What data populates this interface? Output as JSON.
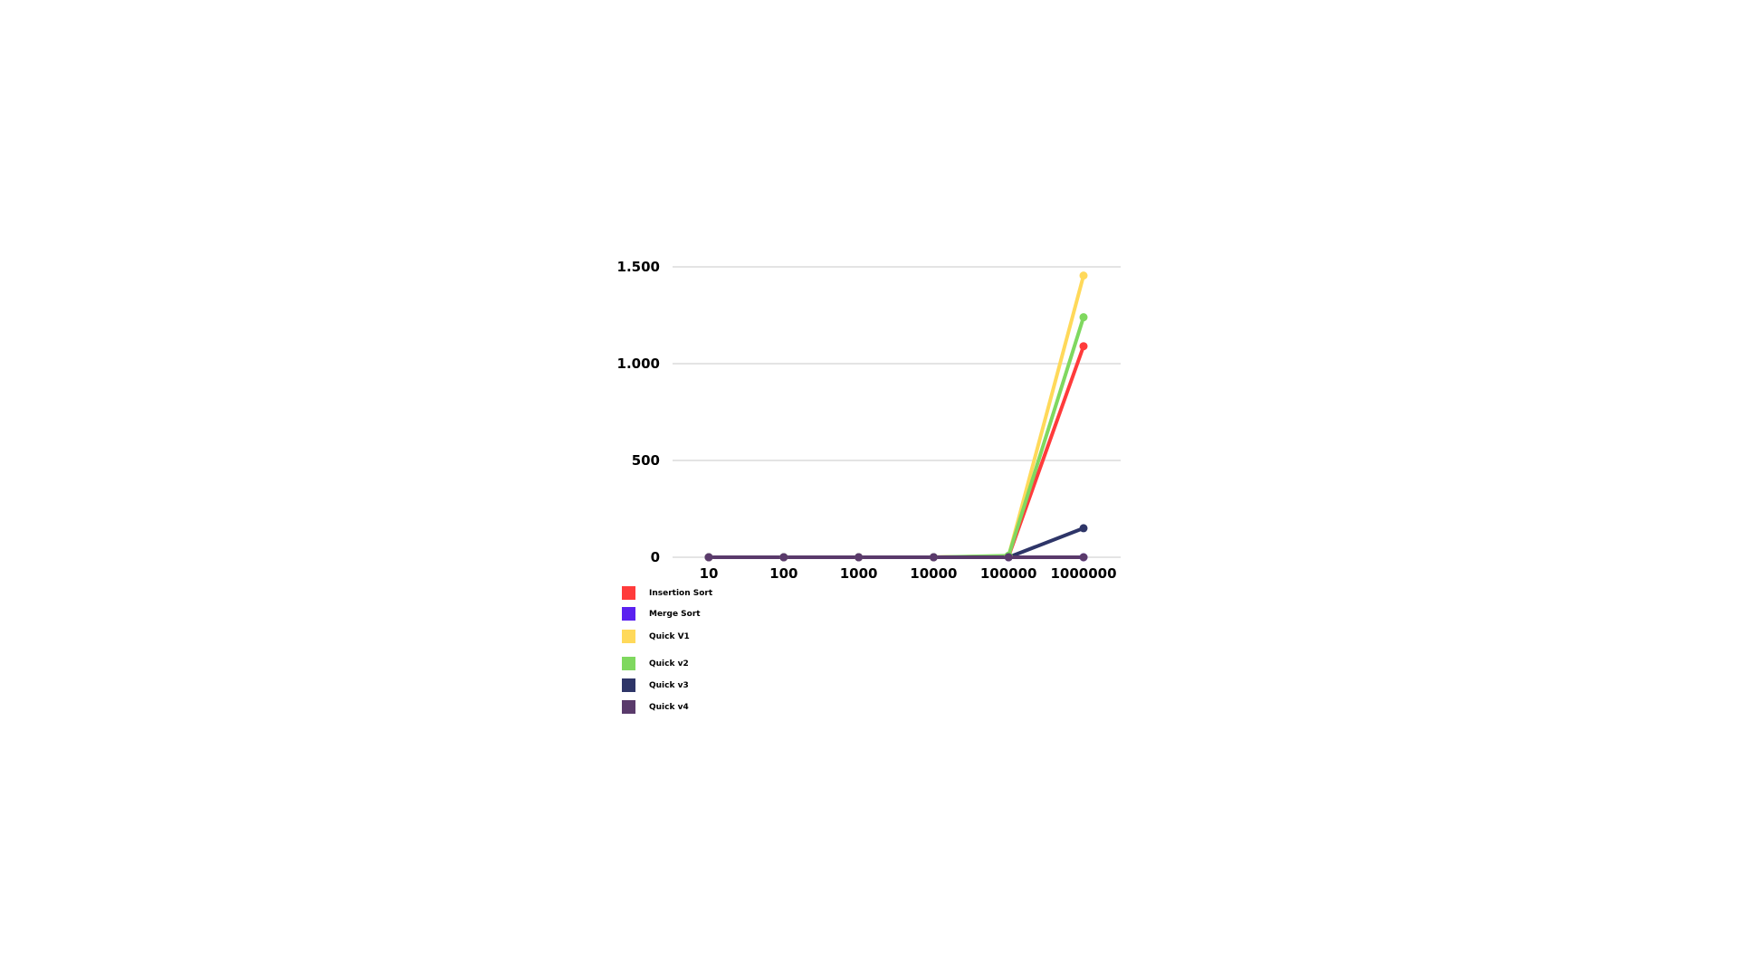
{
  "chart_data": {
    "type": "line",
    "title": "",
    "xlabel": "",
    "ylabel": "",
    "categories": [
      "10",
      "100",
      "1000",
      "10000",
      "100000",
      "1000000"
    ],
    "y_tick_labels": [
      "0",
      "500",
      "1.000",
      "1.500"
    ],
    "ylim": [
      0,
      1500
    ],
    "y_ticks": [
      0,
      500,
      1000,
      1500
    ],
    "grid": true,
    "legend_position": "bottom-left",
    "series": [
      {
        "name": "Insertion Sort",
        "color": "#ff3b3b",
        "values": [
          0,
          0,
          0,
          0,
          5,
          1090
        ]
      },
      {
        "name": "Merge Sort",
        "color": "#5b21f0",
        "values": [
          0,
          0,
          0,
          0,
          0,
          0
        ]
      },
      {
        "name": "Quick V1",
        "color": "#ffd95a",
        "values": [
          0,
          0,
          0,
          0,
          6,
          1455
        ]
      },
      {
        "name": "Quick v2",
        "color": "#7fd85f",
        "values": [
          0,
          0,
          0,
          0,
          8,
          1240
        ]
      },
      {
        "name": "Quick v3",
        "color": "#2e3568",
        "values": [
          0,
          0,
          0,
          0,
          0,
          150
        ]
      },
      {
        "name": "Quick v4",
        "color": "#5a3a6b",
        "values": [
          0,
          0,
          0,
          0,
          0,
          0
        ]
      }
    ]
  }
}
